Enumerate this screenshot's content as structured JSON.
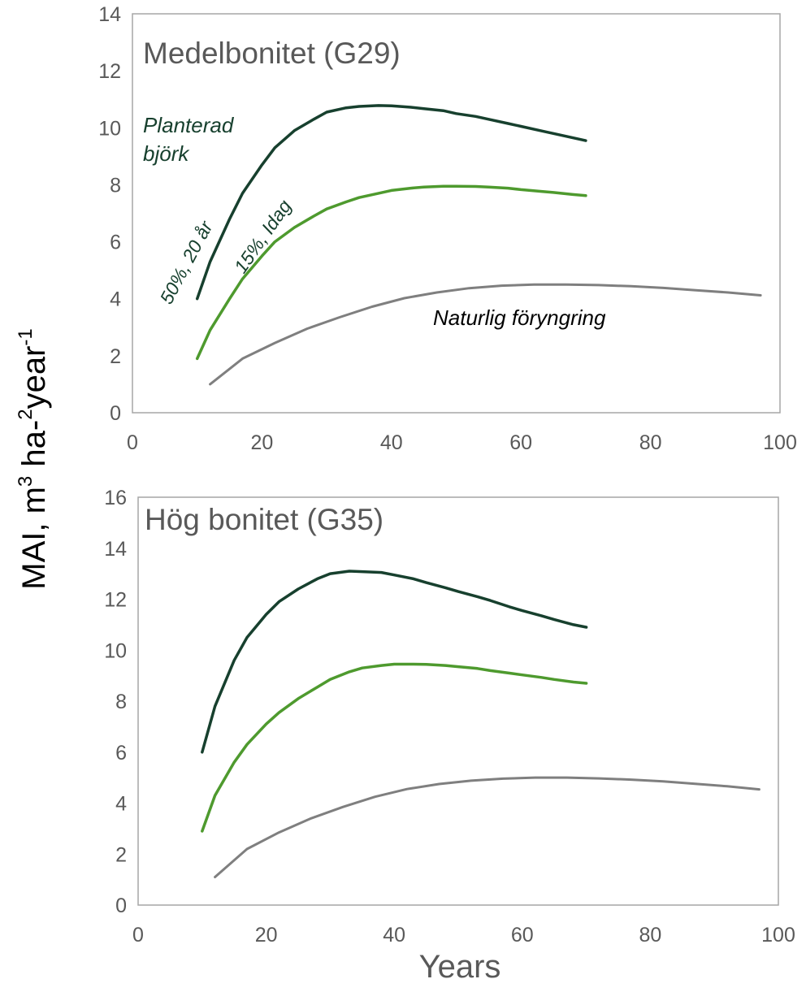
{
  "figure": {
    "ylabel_main": "MAI, m",
    "ylabel_sup1": "3",
    "ylabel_mid": " ha-",
    "ylabel_sup2": "2",
    "ylabel_end": "year",
    "ylabel_sup3": "-1",
    "xlabel": "Years"
  },
  "colors": {
    "dark": "#17402e",
    "light": "#4e9a2e",
    "gray": "#7f7f7f",
    "axis_text": "#595959",
    "frame": "#a6a6a6"
  },
  "chart_data": [
    {
      "type": "line",
      "title": "Medelbonitet (G29)",
      "xlim": [
        0,
        100
      ],
      "ylim": [
        0,
        14
      ],
      "xticks": [
        0,
        20,
        40,
        60,
        80,
        100
      ],
      "yticks": [
        0,
        2,
        4,
        6,
        8,
        10,
        12,
        14
      ],
      "grid": false,
      "annotations": {
        "planterad_line1": "Planterad",
        "planterad_line2": "björk",
        "dark_label": "50%, 20 år",
        "light_label": "15%, Idag",
        "natural_label": "Naturlig föryngring"
      },
      "series": [
        {
          "color_key": "dark",
          "x": [
            10,
            12,
            15,
            17,
            20,
            22,
            25,
            28,
            30,
            33,
            35,
            38,
            40,
            43,
            45,
            48,
            50,
            53,
            55,
            58,
            60,
            63,
            65,
            68,
            70
          ],
          "y": [
            4.0,
            5.3,
            6.8,
            7.7,
            8.7,
            9.3,
            9.9,
            10.3,
            10.55,
            10.7,
            10.75,
            10.78,
            10.77,
            10.72,
            10.67,
            10.6,
            10.5,
            10.4,
            10.3,
            10.15,
            10.05,
            9.9,
            9.8,
            9.65,
            9.55
          ]
        },
        {
          "color_key": "light",
          "x": [
            10,
            12,
            15,
            17,
            20,
            22,
            25,
            28,
            30,
            33,
            35,
            38,
            40,
            43,
            45,
            48,
            50,
            53,
            55,
            58,
            60,
            63,
            65,
            68,
            70
          ],
          "y": [
            1.9,
            2.9,
            4.0,
            4.7,
            5.5,
            6.0,
            6.5,
            6.9,
            7.15,
            7.4,
            7.55,
            7.7,
            7.8,
            7.88,
            7.92,
            7.95,
            7.95,
            7.94,
            7.92,
            7.88,
            7.83,
            7.77,
            7.73,
            7.66,
            7.62
          ]
        },
        {
          "color_key": "gray",
          "x": [
            12,
            17,
            22,
            27,
            32,
            37,
            42,
            47,
            52,
            57,
            62,
            67,
            72,
            77,
            82,
            87,
            92,
            97
          ],
          "y": [
            1.0,
            1.9,
            2.45,
            2.95,
            3.35,
            3.72,
            4.02,
            4.22,
            4.37,
            4.46,
            4.5,
            4.5,
            4.48,
            4.44,
            4.38,
            4.3,
            4.22,
            4.12
          ]
        }
      ]
    },
    {
      "type": "line",
      "title": "Hög bonitet (G35)",
      "xlim": [
        0,
        100
      ],
      "ylim": [
        0,
        16
      ],
      "xticks": [
        0,
        20,
        40,
        60,
        80,
        100
      ],
      "yticks": [
        0,
        2,
        4,
        6,
        8,
        10,
        12,
        14,
        16
      ],
      "grid": false,
      "series": [
        {
          "color_key": "dark",
          "x": [
            10,
            12,
            15,
            17,
            20,
            22,
            25,
            28,
            30,
            33,
            35,
            38,
            40,
            43,
            45,
            48,
            50,
            53,
            55,
            58,
            60,
            63,
            65,
            68,
            70
          ],
          "y": [
            6.0,
            7.8,
            9.6,
            10.5,
            11.4,
            11.9,
            12.4,
            12.8,
            13.0,
            13.1,
            13.08,
            13.05,
            12.95,
            12.8,
            12.65,
            12.45,
            12.3,
            12.1,
            11.95,
            11.7,
            11.55,
            11.35,
            11.2,
            11.0,
            10.9
          ]
        },
        {
          "color_key": "light",
          "x": [
            10,
            12,
            15,
            17,
            20,
            22,
            25,
            28,
            30,
            33,
            35,
            38,
            40,
            43,
            45,
            48,
            50,
            53,
            55,
            58,
            60,
            63,
            65,
            68,
            70
          ],
          "y": [
            2.9,
            4.3,
            5.6,
            6.3,
            7.1,
            7.55,
            8.1,
            8.55,
            8.85,
            9.15,
            9.3,
            9.4,
            9.45,
            9.45,
            9.44,
            9.4,
            9.35,
            9.28,
            9.2,
            9.1,
            9.03,
            8.93,
            8.85,
            8.75,
            8.7
          ]
        },
        {
          "color_key": "gray",
          "x": [
            12,
            17,
            22,
            27,
            32,
            37,
            42,
            47,
            52,
            57,
            62,
            67,
            72,
            77,
            82,
            87,
            92,
            97
          ],
          "y": [
            1.1,
            2.2,
            2.85,
            3.4,
            3.85,
            4.25,
            4.55,
            4.75,
            4.88,
            4.96,
            5.0,
            5.0,
            4.97,
            4.92,
            4.85,
            4.76,
            4.66,
            4.54
          ]
        }
      ]
    }
  ]
}
